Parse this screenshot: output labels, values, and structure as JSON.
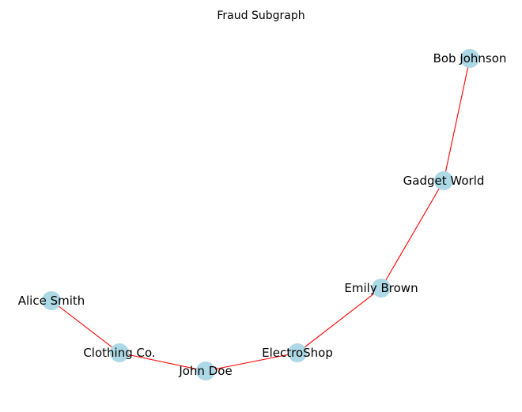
{
  "title": "Fraud Subgraph",
  "colors": {
    "node_fill": "#add8e6",
    "edge": "#ff0000",
    "label": "#000000",
    "background": "#ffffff"
  },
  "nodes": [
    {
      "id": "bob",
      "label": "Bob Johnson"
    },
    {
      "id": "gadget",
      "label": "Gadget World"
    },
    {
      "id": "emily",
      "label": "Emily Brown"
    },
    {
      "id": "alice",
      "label": "Alice Smith"
    },
    {
      "id": "clothing",
      "label": "Clothing Co."
    },
    {
      "id": "electro",
      "label": "ElectroShop"
    },
    {
      "id": "john",
      "label": "John Doe"
    }
  ],
  "edges": [
    {
      "source": "alice",
      "target": "clothing"
    },
    {
      "source": "clothing",
      "target": "john"
    },
    {
      "source": "john",
      "target": "electro"
    },
    {
      "source": "electro",
      "target": "emily"
    },
    {
      "source": "emily",
      "target": "gadget"
    },
    {
      "source": "gadget",
      "target": "bob"
    }
  ]
}
